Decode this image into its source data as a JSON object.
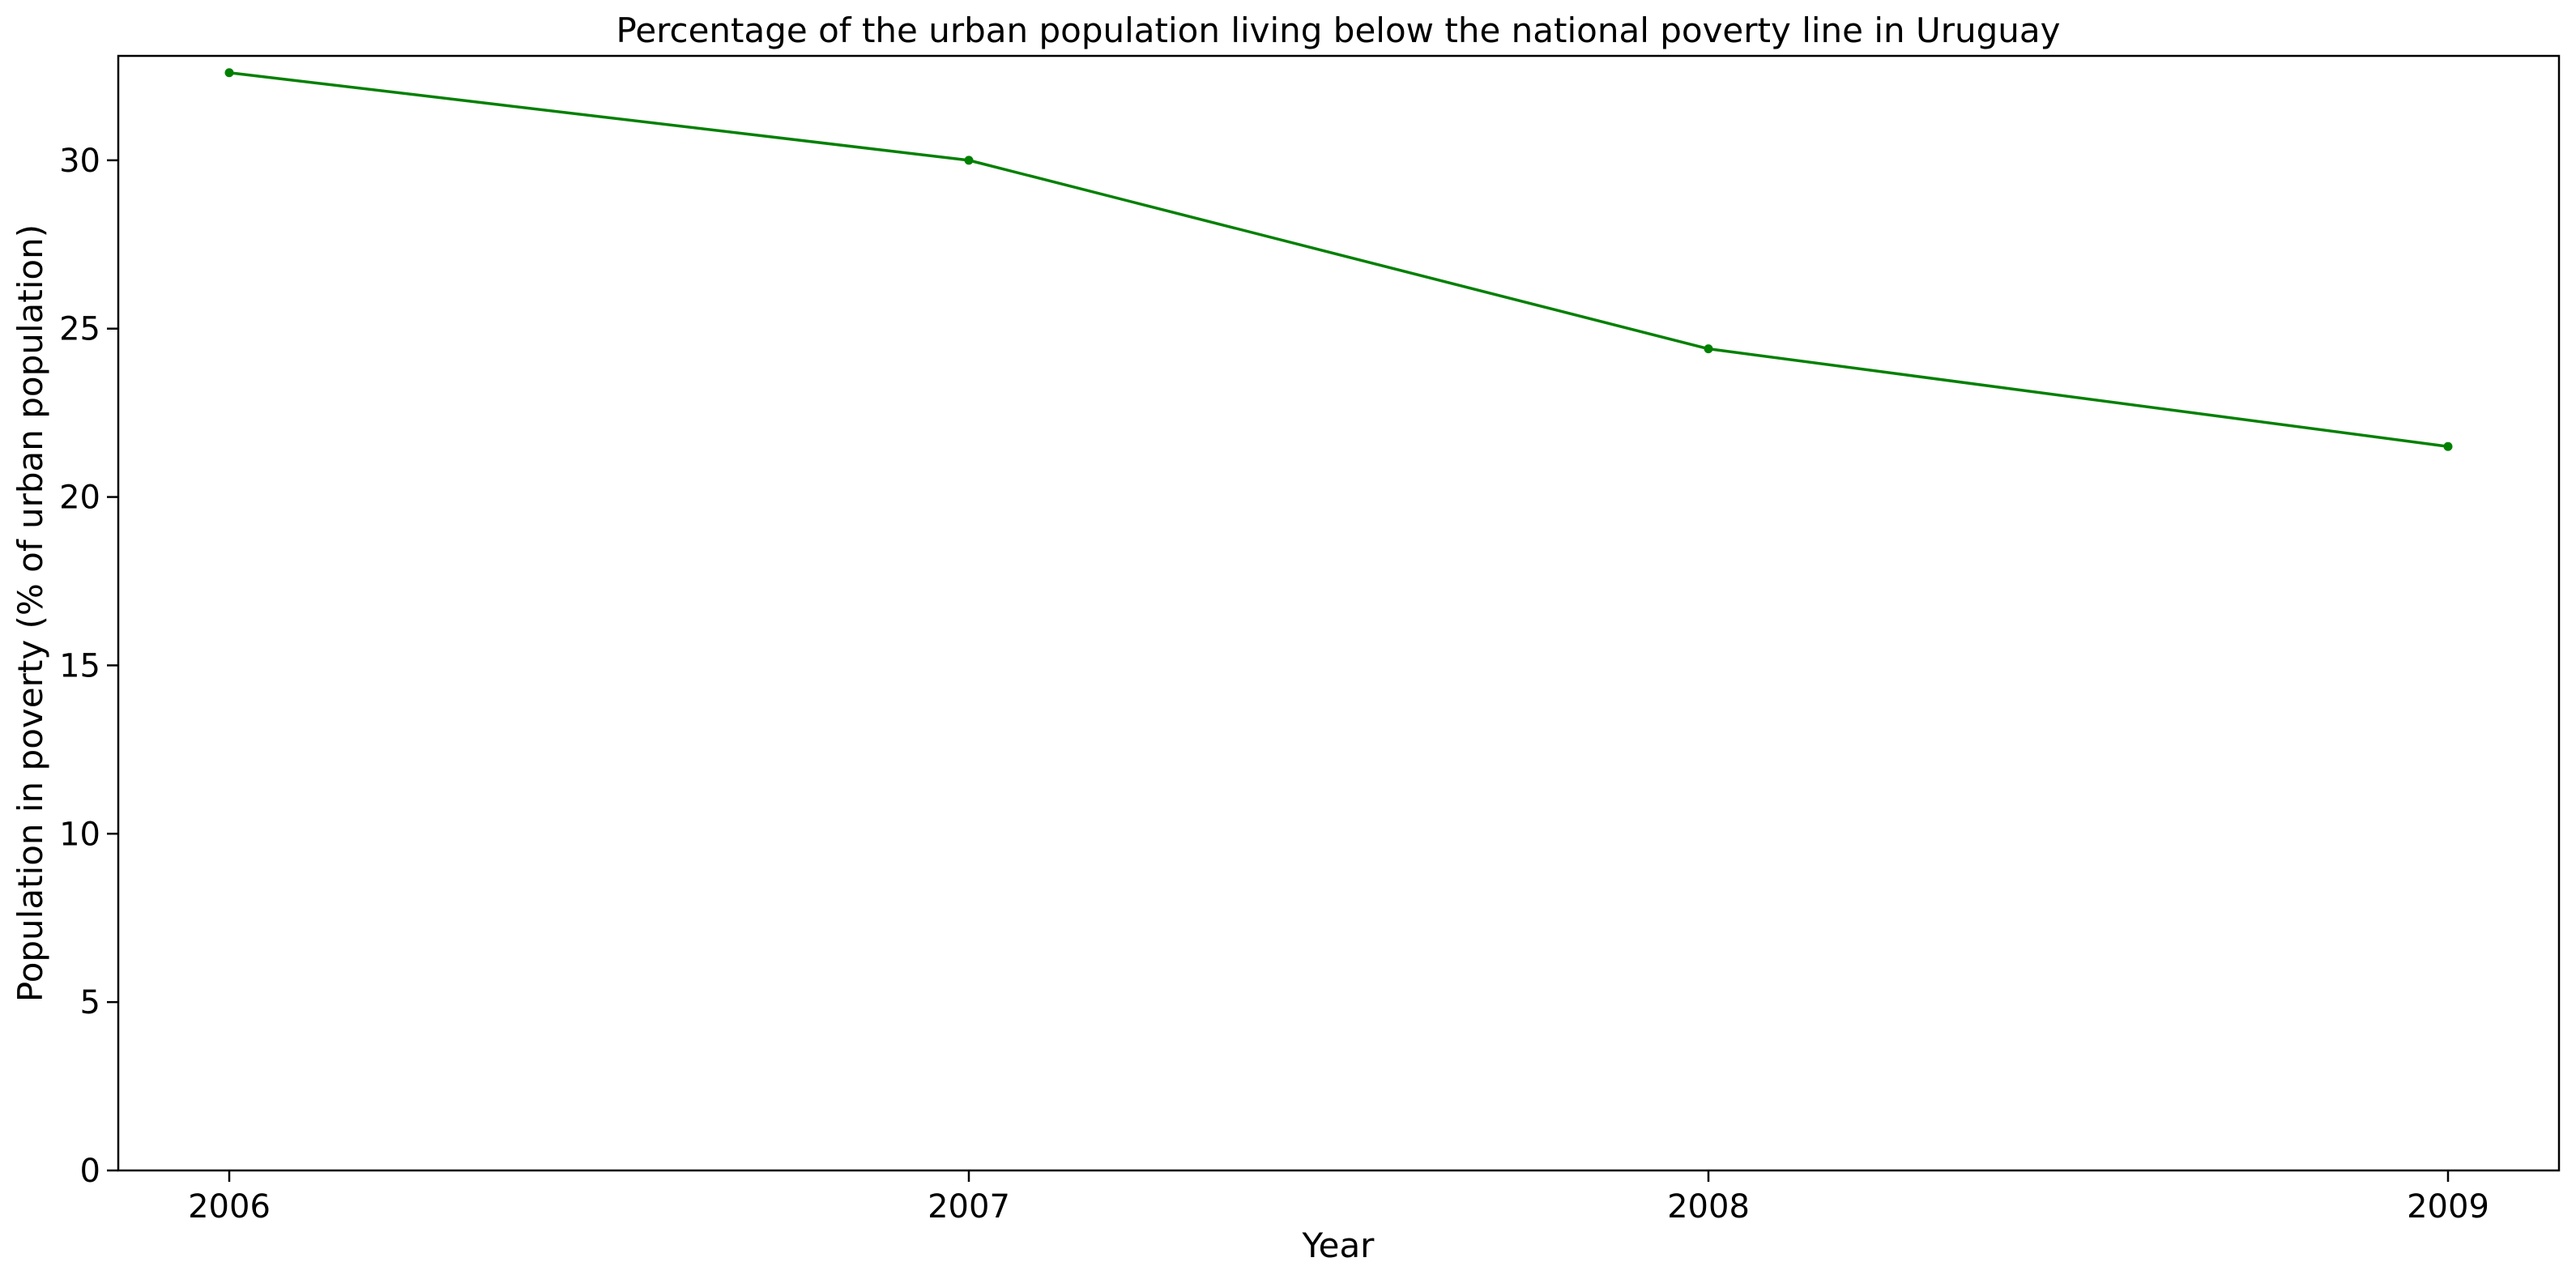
{
  "chart_data": {
    "type": "line",
    "title": "Percentage of the urban population living below the national poverty line in Uruguay",
    "xlabel": "Year",
    "ylabel": "Population in poverty (% of urban population)",
    "x": [
      "2006",
      "2007",
      "2008",
      "2009"
    ],
    "series": [
      {
        "values": [
          32.6,
          30.0,
          24.4,
          21.5
        ],
        "color": "#008000",
        "marker": "dot"
      }
    ],
    "x_ticks": [
      "2006",
      "2007",
      "2008",
      "2009"
    ],
    "y_ticks": [
      "0",
      "5",
      "10",
      "15",
      "20",
      "25",
      "30"
    ],
    "ylim": [
      0,
      33.1
    ],
    "grid": false,
    "legend": "none"
  }
}
